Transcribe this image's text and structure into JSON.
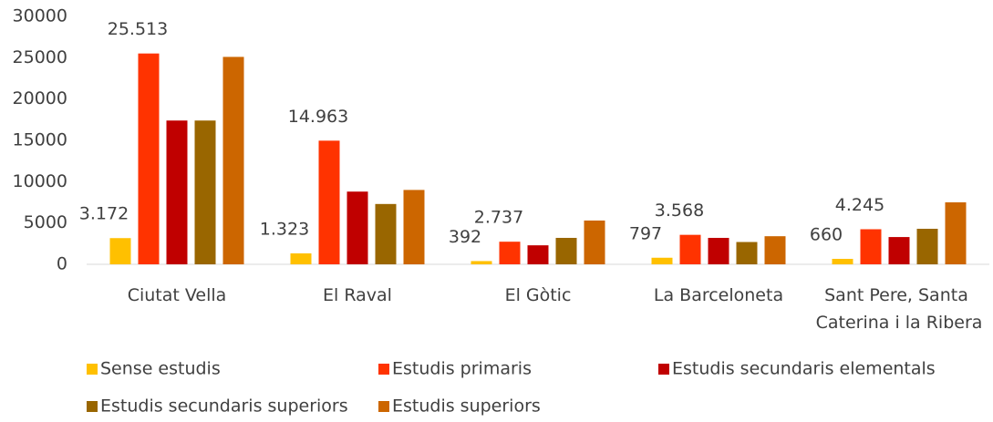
{
  "chart_data": {
    "type": "bar",
    "categories": [
      "Ciutat Vella",
      "El Raval",
      "El Gòtic",
      "La Barceloneta",
      "Sant Pere, Santa Caterina i la Ribera"
    ],
    "series": [
      {
        "name": "Sense estudis",
        "color": "#ffc000",
        "values": [
          3172,
          1323,
          392,
          797,
          660
        ],
        "value_labels": [
          "3.172",
          "1.323",
          "392",
          "797",
          "660"
        ]
      },
      {
        "name": "Estudis primaris",
        "color": "#ff3300",
        "values": [
          25513,
          14963,
          2737,
          3568,
          4245
        ],
        "value_labels": [
          "25.513",
          "14.963",
          "2.737",
          "3.568",
          "4.245"
        ]
      },
      {
        "name": "Estudis secundaris elementals",
        "color": "#c00000",
        "values": [
          17400,
          8800,
          2300,
          3200,
          3300
        ]
      },
      {
        "name": "Estudis secundaris superiors",
        "color": "#996600",
        "values": [
          17400,
          7300,
          3200,
          2700,
          4300
        ]
      },
      {
        "name": "Estudis superiors",
        "color": "#cc6600",
        "values": [
          25100,
          9000,
          5300,
          3400,
          7500
        ]
      }
    ],
    "ylim": [
      0,
      30000
    ],
    "yticks": [
      0,
      5000,
      10000,
      15000,
      20000,
      25000,
      30000
    ],
    "legend": "bottom"
  }
}
